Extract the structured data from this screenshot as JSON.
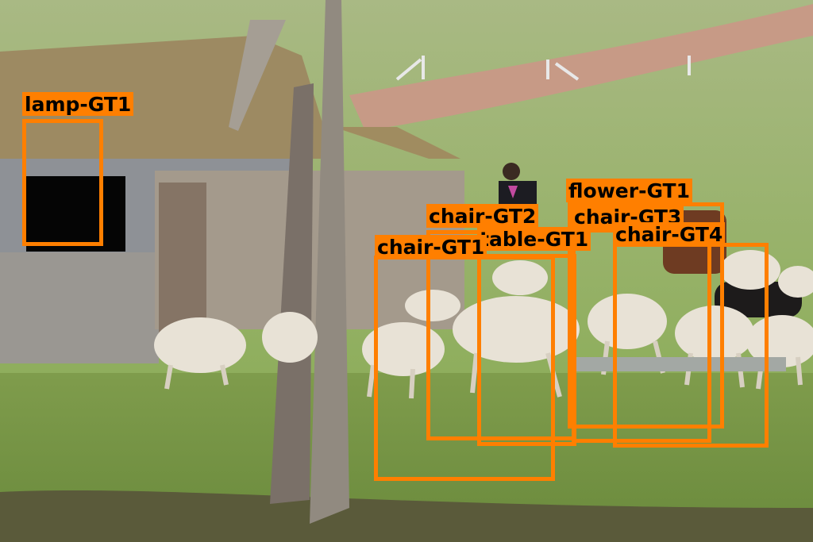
{
  "annotation_color": "#ff7f00",
  "labels": {
    "lamp": "lamp-GT1",
    "flower": "flower-GT1",
    "chair3": "chair-GT3",
    "chair2": "chair-GT2",
    "table": "table-GT1",
    "chair4": "chair-GT4",
    "chair1": "chair-GT1"
  }
}
